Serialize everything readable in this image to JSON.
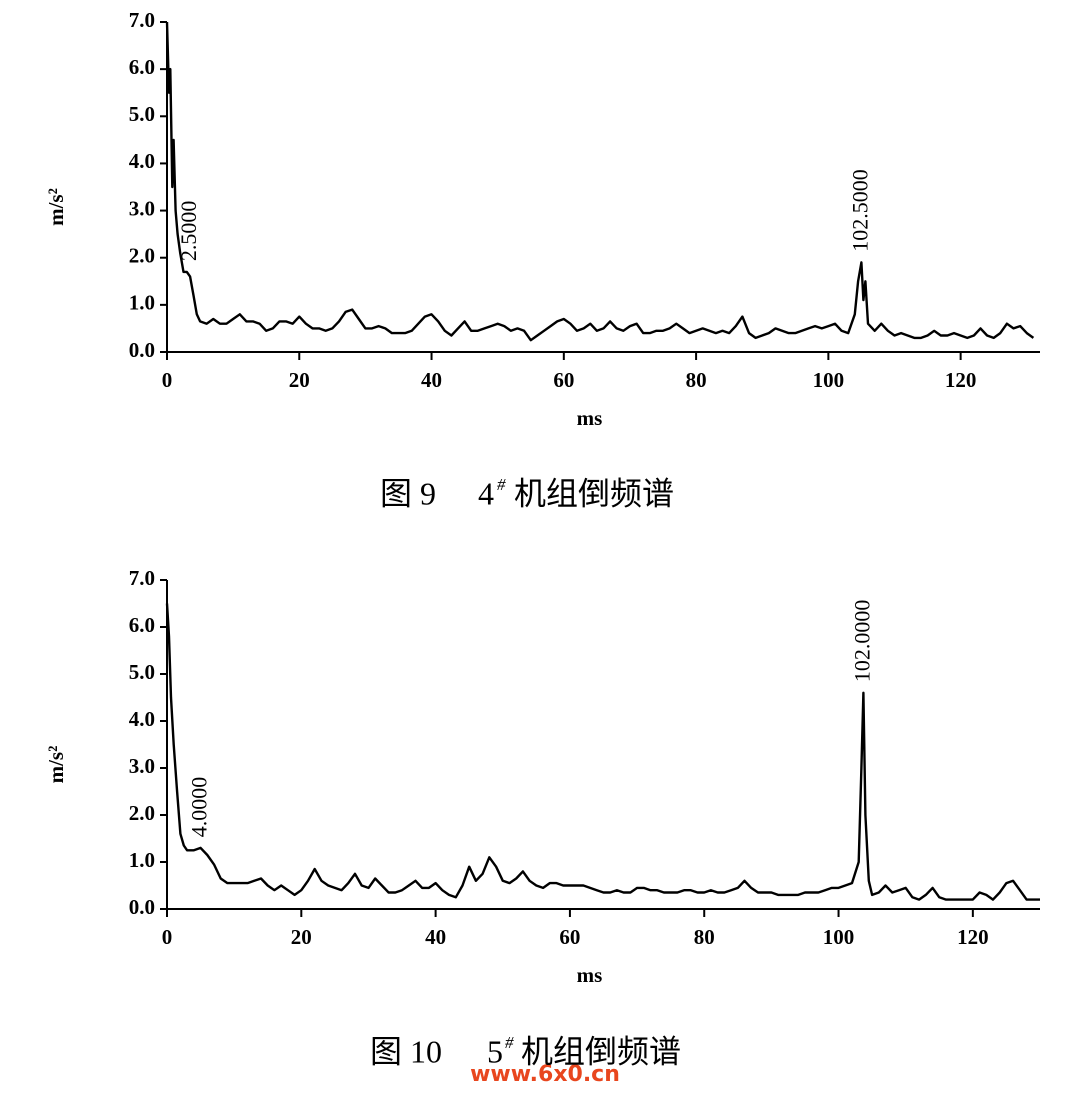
{
  "chart_data": [
    {
      "type": "line",
      "xlabel": "ms",
      "ylabel": "m/s²",
      "xlim": [
        0,
        132
      ],
      "ylim": [
        0,
        7
      ],
      "xticks": [
        0,
        20,
        40,
        60,
        80,
        100,
        120
      ],
      "yticks": [
        {
          "value": 0,
          "label": "0.0"
        },
        {
          "value": 1,
          "label": "1.0"
        },
        {
          "value": 2,
          "label": "2.0"
        },
        {
          "value": 3,
          "label": "3.0"
        },
        {
          "value": 4,
          "label": "4.0"
        },
        {
          "value": 5,
          "label": "5.0"
        },
        {
          "value": 6,
          "label": "6.0"
        },
        {
          "value": 7,
          "label": "7.0"
        }
      ],
      "color": "#000000",
      "x": [
        0,
        0.3,
        0.5,
        0.8,
        1,
        1.3,
        1.6,
        2,
        2.5,
        3,
        3.5,
        4,
        4.5,
        5,
        6,
        7,
        8,
        9,
        10,
        11,
        12,
        13,
        14,
        15,
        16,
        17,
        18,
        19,
        20,
        21,
        22,
        23,
        24,
        25,
        26,
        27,
        28,
        29,
        30,
        31,
        32,
        33,
        34,
        35,
        36,
        37,
        38,
        39,
        40,
        41,
        42,
        43,
        44,
        45,
        46,
        47,
        48,
        49,
        50,
        51,
        52,
        53,
        54,
        55,
        56,
        57,
        58,
        59,
        60,
        61,
        62,
        63,
        64,
        65,
        66,
        67,
        68,
        69,
        70,
        71,
        72,
        73,
        74,
        75,
        76,
        77,
        78,
        79,
        80,
        81,
        82,
        83,
        84,
        85,
        86,
        87,
        88,
        89,
        90,
        91,
        92,
        93,
        94,
        95,
        96,
        97,
        98,
        99,
        100,
        101,
        102,
        103,
        104,
        104.5,
        105,
        105.3,
        105.6,
        106,
        107,
        108,
        109,
        110,
        111,
        112,
        113,
        114,
        115,
        116,
        117,
        118,
        119,
        120,
        121,
        122,
        123,
        124,
        125,
        126,
        127,
        128,
        129,
        130,
        131
      ],
      "values": [
        7.0,
        5.5,
        6.0,
        3.5,
        4.5,
        3.0,
        2.5,
        2.1,
        1.7,
        1.7,
        1.6,
        1.2,
        0.8,
        0.65,
        0.6,
        0.7,
        0.6,
        0.6,
        0.7,
        0.8,
        0.65,
        0.65,
        0.6,
        0.45,
        0.5,
        0.65,
        0.65,
        0.6,
        0.75,
        0.6,
        0.5,
        0.5,
        0.45,
        0.5,
        0.65,
        0.85,
        0.9,
        0.7,
        0.5,
        0.5,
        0.55,
        0.5,
        0.4,
        0.4,
        0.4,
        0.45,
        0.6,
        0.75,
        0.8,
        0.65,
        0.45,
        0.35,
        0.5,
        0.65,
        0.45,
        0.45,
        0.5,
        0.55,
        0.6,
        0.55,
        0.45,
        0.5,
        0.45,
        0.25,
        0.35,
        0.45,
        0.55,
        0.65,
        0.7,
        0.6,
        0.45,
        0.5,
        0.6,
        0.45,
        0.5,
        0.65,
        0.5,
        0.45,
        0.55,
        0.6,
        0.4,
        0.4,
        0.45,
        0.45,
        0.5,
        0.6,
        0.5,
        0.4,
        0.45,
        0.5,
        0.45,
        0.4,
        0.45,
        0.4,
        0.55,
        0.75,
        0.4,
        0.3,
        0.35,
        0.4,
        0.5,
        0.45,
        0.4,
        0.4,
        0.45,
        0.5,
        0.55,
        0.5,
        0.55,
        0.6,
        0.45,
        0.4,
        0.8,
        1.5,
        1.9,
        1.1,
        1.5,
        0.6,
        0.45,
        0.6,
        0.45,
        0.35,
        0.4,
        0.35,
        0.3,
        0.3,
        0.35,
        0.45,
        0.35,
        0.35,
        0.4,
        0.35,
        0.3,
        0.35,
        0.5,
        0.35,
        0.3,
        0.4,
        0.6,
        0.5,
        0.55,
        0.4,
        0.3
      ],
      "annotations": [
        {
          "text": "2.5000",
          "x": 3.5,
          "y": 1.8
        },
        {
          "text": "102.5000",
          "x": 105,
          "y": 2.0
        }
      ],
      "caption_number": "图 9",
      "caption_unit": "4",
      "caption_mark": "#",
      "caption_text": "机组倒频谱"
    },
    {
      "type": "line",
      "xlabel": "ms",
      "ylabel": "m/s²",
      "xlim": [
        0,
        130
      ],
      "ylim": [
        0,
        7
      ],
      "xticks": [
        0,
        20,
        40,
        60,
        80,
        100,
        120
      ],
      "yticks": [
        {
          "value": 0,
          "label": "0.0"
        },
        {
          "value": 1,
          "label": "1.0"
        },
        {
          "value": 2,
          "label": "2.0"
        },
        {
          "value": 3,
          "label": "3.0"
        },
        {
          "value": 4,
          "label": "4.0"
        },
        {
          "value": 5,
          "label": "5.0"
        },
        {
          "value": 6,
          "label": "6.0"
        },
        {
          "value": 7,
          "label": "7.0"
        }
      ],
      "color": "#000000",
      "x": [
        0,
        0.3,
        0.6,
        1,
        1.5,
        2,
        2.5,
        3,
        4,
        5,
        6,
        7,
        8,
        9,
        10,
        11,
        12,
        13,
        14,
        15,
        16,
        17,
        18,
        19,
        20,
        21,
        22,
        23,
        24,
        25,
        26,
        27,
        28,
        29,
        30,
        31,
        32,
        33,
        34,
        35,
        36,
        37,
        38,
        39,
        40,
        41,
        42,
        43,
        44,
        45,
        46,
        47,
        48,
        49,
        50,
        51,
        52,
        53,
        54,
        55,
        56,
        57,
        58,
        59,
        60,
        61,
        62,
        63,
        64,
        65,
        66,
        67,
        68,
        69,
        70,
        71,
        72,
        73,
        74,
        75,
        76,
        77,
        78,
        79,
        80,
        81,
        82,
        83,
        84,
        85,
        86,
        87,
        88,
        89,
        90,
        91,
        92,
        93,
        94,
        95,
        96,
        97,
        98,
        99,
        100,
        101,
        102,
        103,
        103.4,
        103.7,
        104,
        104.5,
        105,
        106,
        107,
        108,
        109,
        110,
        111,
        112,
        113,
        114,
        115,
        116,
        117,
        118,
        119,
        120,
        121,
        122,
        123,
        124,
        125,
        126,
        127,
        128,
        129,
        130
      ],
      "values": [
        6.5,
        5.8,
        4.5,
        3.5,
        2.5,
        1.6,
        1.35,
        1.25,
        1.25,
        1.3,
        1.15,
        0.95,
        0.65,
        0.55,
        0.55,
        0.55,
        0.55,
        0.6,
        0.65,
        0.5,
        0.4,
        0.5,
        0.4,
        0.3,
        0.4,
        0.6,
        0.85,
        0.6,
        0.5,
        0.45,
        0.4,
        0.55,
        0.75,
        0.5,
        0.45,
        0.65,
        0.5,
        0.35,
        0.35,
        0.4,
        0.5,
        0.6,
        0.45,
        0.45,
        0.55,
        0.4,
        0.3,
        0.25,
        0.5,
        0.9,
        0.6,
        0.75,
        1.1,
        0.9,
        0.6,
        0.55,
        0.65,
        0.8,
        0.6,
        0.5,
        0.45,
        0.55,
        0.55,
        0.5,
        0.5,
        0.5,
        0.5,
        0.45,
        0.4,
        0.35,
        0.35,
        0.4,
        0.35,
        0.35,
        0.45,
        0.45,
        0.4,
        0.4,
        0.35,
        0.35,
        0.35,
        0.4,
        0.4,
        0.35,
        0.35,
        0.4,
        0.35,
        0.35,
        0.4,
        0.45,
        0.6,
        0.45,
        0.35,
        0.35,
        0.35,
        0.3,
        0.3,
        0.3,
        0.3,
        0.35,
        0.35,
        0.35,
        0.4,
        0.45,
        0.45,
        0.5,
        0.55,
        1.0,
        3.0,
        4.6,
        2.0,
        0.6,
        0.3,
        0.35,
        0.5,
        0.35,
        0.4,
        0.45,
        0.25,
        0.2,
        0.3,
        0.45,
        0.25,
        0.2,
        0.2,
        0.2,
        0.2,
        0.2,
        0.35,
        0.3,
        0.2,
        0.35,
        0.55,
        0.6,
        0.4,
        0.2,
        0.2,
        0.2
      ],
      "annotations": [
        {
          "text": "4.0000",
          "x": 5,
          "y": 1.4
        },
        {
          "text": "102.0000",
          "x": 103.7,
          "y": 4.7
        }
      ],
      "caption_number": "图 10",
      "caption_unit": "5",
      "caption_mark": "#",
      "caption_text": "机组倒频谱"
    }
  ],
  "watermark": "www.6x0.cn"
}
